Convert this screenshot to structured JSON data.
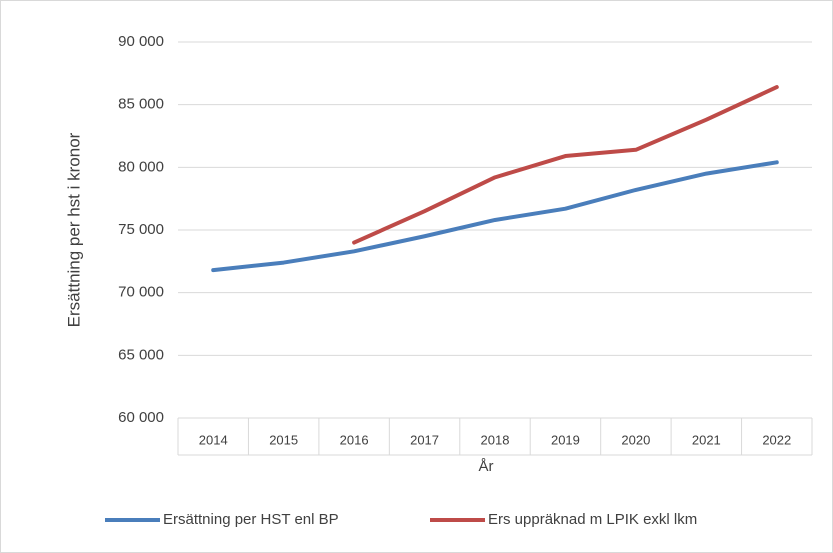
{
  "chart_data": {
    "type": "line",
    "xlabel": "År",
    "ylabel": "Ersättning per hst i kronor",
    "categories": [
      "2014",
      "2015",
      "2016",
      "2017",
      "2018",
      "2019",
      "2020",
      "2021",
      "2022"
    ],
    "series": [
      {
        "name": "Ersättning per HST enl BP",
        "color": "#4a7ebb",
        "values": [
          71800,
          72400,
          73300,
          74500,
          75800,
          76700,
          78200,
          79500,
          80400
        ]
      },
      {
        "name": "Ers uppräknad m LPIK exkl lkm",
        "color": "#be4b48",
        "values": [
          null,
          null,
          74000,
          76500,
          79200,
          80900,
          81400,
          83800,
          86400
        ]
      }
    ],
    "ylim": [
      60000,
      90000
    ],
    "yticks": [
      {
        "value": 60000,
        "label": "60 000"
      },
      {
        "value": 65000,
        "label": "65 000"
      },
      {
        "value": 70000,
        "label": "70 000"
      },
      {
        "value": 75000,
        "label": "75 000"
      },
      {
        "value": 80000,
        "label": "80 000"
      },
      {
        "value": 85000,
        "label": "85 000"
      },
      {
        "value": 90000,
        "label": "90 000"
      }
    ],
    "grid": true,
    "legend": "bottom"
  }
}
